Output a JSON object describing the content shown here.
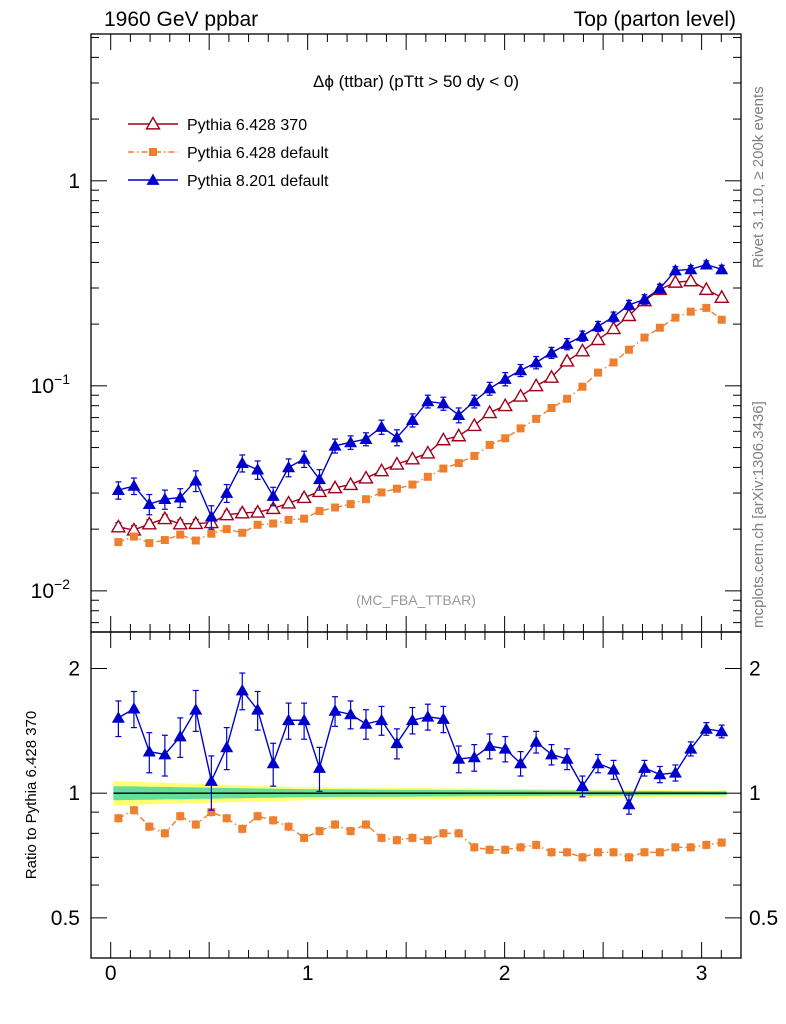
{
  "header": {
    "left": "1960 GeV ppbar",
    "right": "Top (parton level)"
  },
  "side_notes": {
    "rivet": "Rivet 3.1.10, ≥ 200k events",
    "mcplots": "mcplots.cern.ch [arXiv:1306.3436]"
  },
  "chart_data": [
    {
      "type": "line",
      "panel": "main",
      "title": "Δϕ (ttbar) (pTtt > 50 dy < 0)",
      "watermark": "(MC_FBA_TTBAR)",
      "yscale": "log",
      "xlim": [
        -0.1,
        3.2
      ],
      "ylim": [
        0.0063,
        5.2
      ],
      "ytick_labels": [
        {
          "value": 1,
          "label": "1"
        },
        {
          "value": 0.1,
          "label": "10",
          "exp": "−1"
        },
        {
          "value": 0.01,
          "label": "10",
          "exp": "−2"
        }
      ],
      "legend_position": "top-left",
      "x": [
        0.039,
        0.118,
        0.196,
        0.275,
        0.353,
        0.432,
        0.511,
        0.589,
        0.668,
        0.746,
        0.825,
        0.903,
        0.982,
        1.06,
        1.139,
        1.218,
        1.296,
        1.375,
        1.453,
        1.532,
        1.61,
        1.689,
        1.767,
        1.846,
        1.924,
        2.003,
        2.081,
        2.16,
        2.238,
        2.317,
        2.395,
        2.474,
        2.553,
        2.631,
        2.71,
        2.788,
        2.867,
        2.945,
        3.024,
        3.102
      ],
      "series": [
        {
          "name": "Pythia 6.428 370",
          "color": "#a0001c",
          "marker": "triangle-open",
          "linestyle": "solid",
          "values": [
            0.0205,
            0.0198,
            0.0212,
            0.0225,
            0.0212,
            0.0213,
            0.0215,
            0.0235,
            0.024,
            0.0242,
            0.0252,
            0.0268,
            0.0285,
            0.0305,
            0.0318,
            0.033,
            0.0355,
            0.0385,
            0.0415,
            0.044,
            0.047,
            0.0545,
            0.057,
            0.064,
            0.074,
            0.08,
            0.089,
            0.1,
            0.11,
            0.132,
            0.148,
            0.168,
            0.19,
            0.22,
            0.26,
            0.295,
            0.32,
            0.325,
            0.295,
            0.27
          ],
          "errors": [
            0.001,
            0.001,
            0.001,
            0.001,
            0.001,
            0.001,
            0.001,
            0.001,
            0.001,
            0.001,
            0.001,
            0.001,
            0.001,
            0.001,
            0.001,
            0.001,
            0.001,
            0.001,
            0.001,
            0.001,
            0.001,
            0.001,
            0.001,
            0.001,
            0.001,
            0.001,
            0.001,
            0.002,
            0.002,
            0.002,
            0.002,
            0.002,
            0.002,
            0.003,
            0.003,
            0.003,
            0.003,
            0.003,
            0.003,
            0.003
          ]
        },
        {
          "name": "Pythia 6.428 default",
          "color": "#ee7f2f",
          "marker": "square",
          "linestyle": "dash-dot",
          "values": [
            0.0173,
            0.0184,
            0.0171,
            0.0177,
            0.0188,
            0.0176,
            0.019,
            0.02,
            0.0192,
            0.021,
            0.0213,
            0.0222,
            0.0225,
            0.0245,
            0.0255,
            0.0265,
            0.028,
            0.0302,
            0.0315,
            0.033,
            0.036,
            0.0395,
            0.042,
            0.0455,
            0.0515,
            0.0555,
            0.062,
            0.069,
            0.078,
            0.0865,
            0.099,
            0.116,
            0.13,
            0.15,
            0.172,
            0.192,
            0.215,
            0.23,
            0.24,
            0.21
          ]
        },
        {
          "name": "Pythia 8.201 default",
          "color": "#0000cc",
          "marker": "triangle",
          "linestyle": "solid",
          "values": [
            0.031,
            0.0325,
            0.0265,
            0.028,
            0.0285,
            0.0345,
            0.023,
            0.03,
            0.042,
            0.039,
            0.029,
            0.04,
            0.044,
            0.035,
            0.051,
            0.053,
            0.055,
            0.063,
            0.056,
            0.068,
            0.084,
            0.082,
            0.072,
            0.084,
            0.097,
            0.108,
            0.119,
            0.13,
            0.145,
            0.16,
            0.175,
            0.195,
            0.217,
            0.248,
            0.264,
            0.298,
            0.365,
            0.37,
            0.39,
            0.37
          ],
          "errors": [
            0.003,
            0.003,
            0.003,
            0.003,
            0.003,
            0.004,
            0.003,
            0.003,
            0.004,
            0.004,
            0.003,
            0.004,
            0.004,
            0.004,
            0.004,
            0.004,
            0.004,
            0.005,
            0.005,
            0.005,
            0.006,
            0.006,
            0.006,
            0.006,
            0.007,
            0.008,
            0.008,
            0.009,
            0.009,
            0.01,
            0.01,
            0.011,
            0.012,
            0.013,
            0.014,
            0.015,
            0.016,
            0.016,
            0.017,
            0.017
          ]
        }
      ]
    },
    {
      "type": "line",
      "panel": "ratio",
      "ylabel": "Ratio to Pythia 6.428 370",
      "yscale": "log",
      "xlim": [
        -0.1,
        3.2
      ],
      "ylim": [
        0.4,
        2.45
      ],
      "yticks": [
        2,
        1,
        0.5
      ],
      "ytick_labels": [
        "2",
        "1",
        "0.5"
      ],
      "xticks": [
        0,
        1,
        2,
        3
      ],
      "xtick_labels": [
        "0",
        "1",
        "2",
        "3"
      ],
      "reference": {
        "value": 1.0,
        "color": "#000000",
        "band_inner": "#66dd99",
        "band_outer": "#ffff77"
      },
      "series": [
        {
          "name": "Pythia 6.428 default",
          "color": "#ee7f2f",
          "values": [
            0.87,
            0.91,
            0.83,
            0.8,
            0.88,
            0.84,
            0.9,
            0.87,
            0.82,
            0.88,
            0.86,
            0.83,
            0.78,
            0.81,
            0.84,
            0.81,
            0.84,
            0.78,
            0.77,
            0.78,
            0.77,
            0.8,
            0.8,
            0.74,
            0.73,
            0.73,
            0.74,
            0.75,
            0.72,
            0.72,
            0.7,
            0.72,
            0.72,
            0.7,
            0.72,
            0.72,
            0.74,
            0.74,
            0.75,
            0.76
          ]
        },
        {
          "name": "Pythia 8.201 default",
          "color": "#0000cc",
          "values": [
            1.52,
            1.6,
            1.26,
            1.24,
            1.37,
            1.59,
            1.07,
            1.29,
            1.77,
            1.59,
            1.18,
            1.5,
            1.5,
            1.15,
            1.58,
            1.55,
            1.47,
            1.5,
            1.32,
            1.5,
            1.53,
            1.51,
            1.21,
            1.22,
            1.3,
            1.28,
            1.18,
            1.33,
            1.24,
            1.21,
            1.04,
            1.18,
            1.14,
            0.94,
            1.15,
            1.11,
            1.12,
            1.28,
            1.43,
            1.41
          ],
          "errors": [
            0.15,
            0.16,
            0.14,
            0.14,
            0.15,
            0.18,
            0.16,
            0.15,
            0.18,
            0.17,
            0.14,
            0.15,
            0.15,
            0.14,
            0.13,
            0.12,
            0.12,
            0.12,
            0.11,
            0.11,
            0.11,
            0.11,
            0.09,
            0.09,
            0.09,
            0.09,
            0.08,
            0.08,
            0.07,
            0.07,
            0.06,
            0.06,
            0.06,
            0.05,
            0.05,
            0.05,
            0.05,
            0.05,
            0.05,
            0.05
          ]
        }
      ]
    }
  ]
}
